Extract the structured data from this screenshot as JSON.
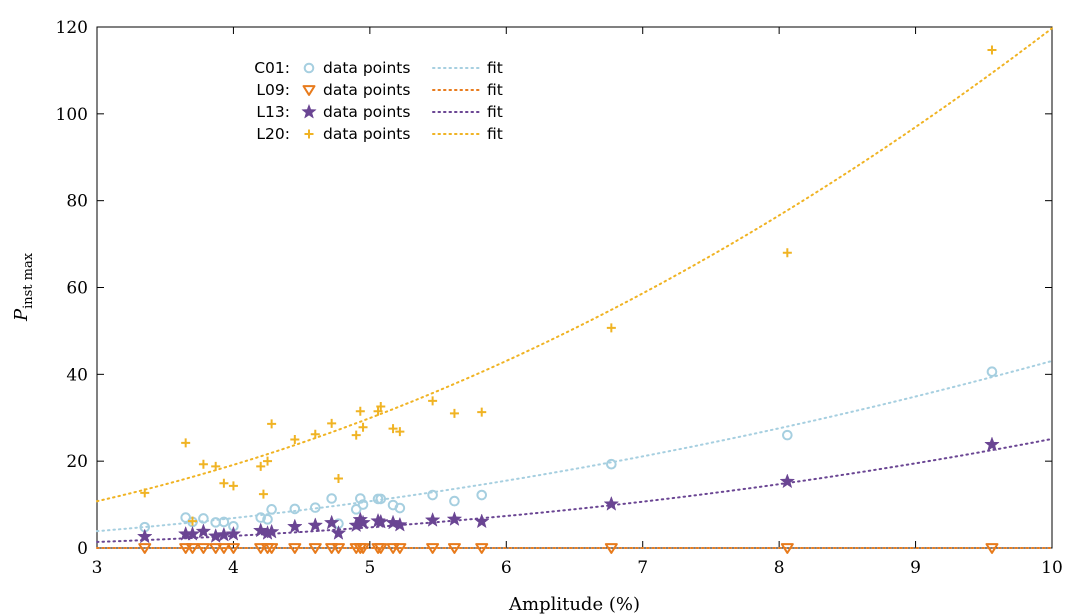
{
  "chart_data": {
    "type": "scatter",
    "xlabel": "Amplitude (%)",
    "ylabel_main": "P",
    "ylabel_sub": "inst max",
    "xlim": [
      3,
      10
    ],
    "ylim": [
      0,
      120
    ],
    "xticks": [
      3,
      4,
      5,
      6,
      7,
      8,
      9,
      10
    ],
    "yticks": [
      0,
      20,
      40,
      60,
      80,
      100,
      120
    ],
    "grid": false,
    "legend_position": "top-left",
    "legend_points_label": "data points",
    "legend_fit_label": "fit",
    "series": [
      {
        "name": "C01:",
        "marker": "circle",
        "color": "#a6cfe0",
        "points": [
          [
            3.35,
            4.8
          ],
          [
            3.65,
            7.0
          ],
          [
            3.7,
            6.0
          ],
          [
            3.78,
            6.8
          ],
          [
            3.87,
            5.9
          ],
          [
            3.93,
            6.0
          ],
          [
            4.0,
            5.0
          ],
          [
            4.2,
            7.0
          ],
          [
            4.25,
            6.6
          ],
          [
            4.28,
            8.9
          ],
          [
            4.45,
            9.0
          ],
          [
            4.6,
            9.3
          ],
          [
            4.72,
            11.4
          ],
          [
            4.77,
            5.6
          ],
          [
            4.9,
            8.9
          ],
          [
            4.93,
            11.4
          ],
          [
            4.95,
            10.0
          ],
          [
            5.06,
            11.3
          ],
          [
            5.08,
            11.3
          ],
          [
            5.17,
            9.9
          ],
          [
            5.22,
            9.2
          ],
          [
            5.46,
            12.2
          ],
          [
            5.62,
            10.8
          ],
          [
            5.82,
            12.2
          ],
          [
            6.77,
            19.3
          ],
          [
            8.06,
            26.0
          ],
          [
            9.56,
            40.6
          ]
        ],
        "fit": {
          "a": 0.4308,
          "p": 2.0
        }
      },
      {
        "name": "L09:",
        "marker": "triangle-down",
        "color": "#e87b1c",
        "points": [
          [
            3.35,
            0.0
          ],
          [
            3.65,
            0.0
          ],
          [
            3.7,
            0.0
          ],
          [
            3.78,
            0.0
          ],
          [
            3.87,
            0.0
          ],
          [
            3.93,
            0.0
          ],
          [
            4.0,
            0.0
          ],
          [
            4.2,
            0.0
          ],
          [
            4.25,
            0.0
          ],
          [
            4.28,
            0.0
          ],
          [
            4.45,
            0.0
          ],
          [
            4.6,
            0.0
          ],
          [
            4.72,
            0.0
          ],
          [
            4.77,
            0.0
          ],
          [
            4.9,
            0.0
          ],
          [
            4.93,
            0.0
          ],
          [
            4.95,
            0.0
          ],
          [
            5.06,
            0.0
          ],
          [
            5.08,
            0.0
          ],
          [
            5.17,
            0.0
          ],
          [
            5.22,
            0.0
          ],
          [
            5.46,
            0.0
          ],
          [
            5.62,
            0.0
          ],
          [
            5.82,
            0.0
          ],
          [
            6.77,
            0.0
          ],
          [
            8.06,
            0.0
          ],
          [
            9.56,
            0.0
          ]
        ],
        "fit": {
          "a": 0.0,
          "p": 2.0
        }
      },
      {
        "name": "L13:",
        "marker": "star",
        "color": "#6a4593",
        "points": [
          [
            3.35,
            2.6
          ],
          [
            3.65,
            3.2
          ],
          [
            3.7,
            3.2
          ],
          [
            3.78,
            3.8
          ],
          [
            3.87,
            2.7
          ],
          [
            3.93,
            3.0
          ],
          [
            4.0,
            3.2
          ],
          [
            4.2,
            4.0
          ],
          [
            4.25,
            3.4
          ],
          [
            4.28,
            3.7
          ],
          [
            4.45,
            4.9
          ],
          [
            4.6,
            5.2
          ],
          [
            4.72,
            5.8
          ],
          [
            4.77,
            3.4
          ],
          [
            4.9,
            5.2
          ],
          [
            4.93,
            6.5
          ],
          [
            4.95,
            5.8
          ],
          [
            5.06,
            6.2
          ],
          [
            5.08,
            6.0
          ],
          [
            5.17,
            5.8
          ],
          [
            5.22,
            5.3
          ],
          [
            5.46,
            6.4
          ],
          [
            5.62,
            6.6
          ],
          [
            5.82,
            6.1
          ],
          [
            6.77,
            10.1
          ],
          [
            8.06,
            15.3
          ],
          [
            9.56,
            23.8
          ]
        ],
        "fit": {
          "a": 0.1,
          "p": 2.4
        }
      },
      {
        "name": "L20:",
        "marker": "plus",
        "color": "#f0b323",
        "points": [
          [
            3.35,
            12.7
          ],
          [
            3.65,
            24.2
          ],
          [
            3.7,
            6.2
          ],
          [
            3.78,
            19.3
          ],
          [
            3.87,
            18.8
          ],
          [
            3.93,
            14.9
          ],
          [
            4.0,
            14.3
          ],
          [
            4.2,
            18.8
          ],
          [
            4.22,
            12.4
          ],
          [
            4.25,
            20.0
          ],
          [
            4.28,
            28.6
          ],
          [
            4.45,
            25.0
          ],
          [
            4.6,
            26.2
          ],
          [
            4.72,
            28.7
          ],
          [
            4.77,
            16.0
          ],
          [
            4.9,
            26.0
          ],
          [
            4.93,
            31.5
          ],
          [
            4.95,
            27.8
          ],
          [
            5.06,
            31.5
          ],
          [
            5.08,
            32.6
          ],
          [
            5.17,
            27.5
          ],
          [
            5.22,
            26.8
          ],
          [
            5.46,
            33.9
          ],
          [
            5.62,
            31.0
          ],
          [
            5.82,
            31.3
          ],
          [
            6.77,
            50.7
          ],
          [
            8.06,
            68.0
          ],
          [
            9.56,
            114.7
          ]
        ],
        "fit": {
          "a": 1.197,
          "p": 2.0
        }
      }
    ]
  }
}
